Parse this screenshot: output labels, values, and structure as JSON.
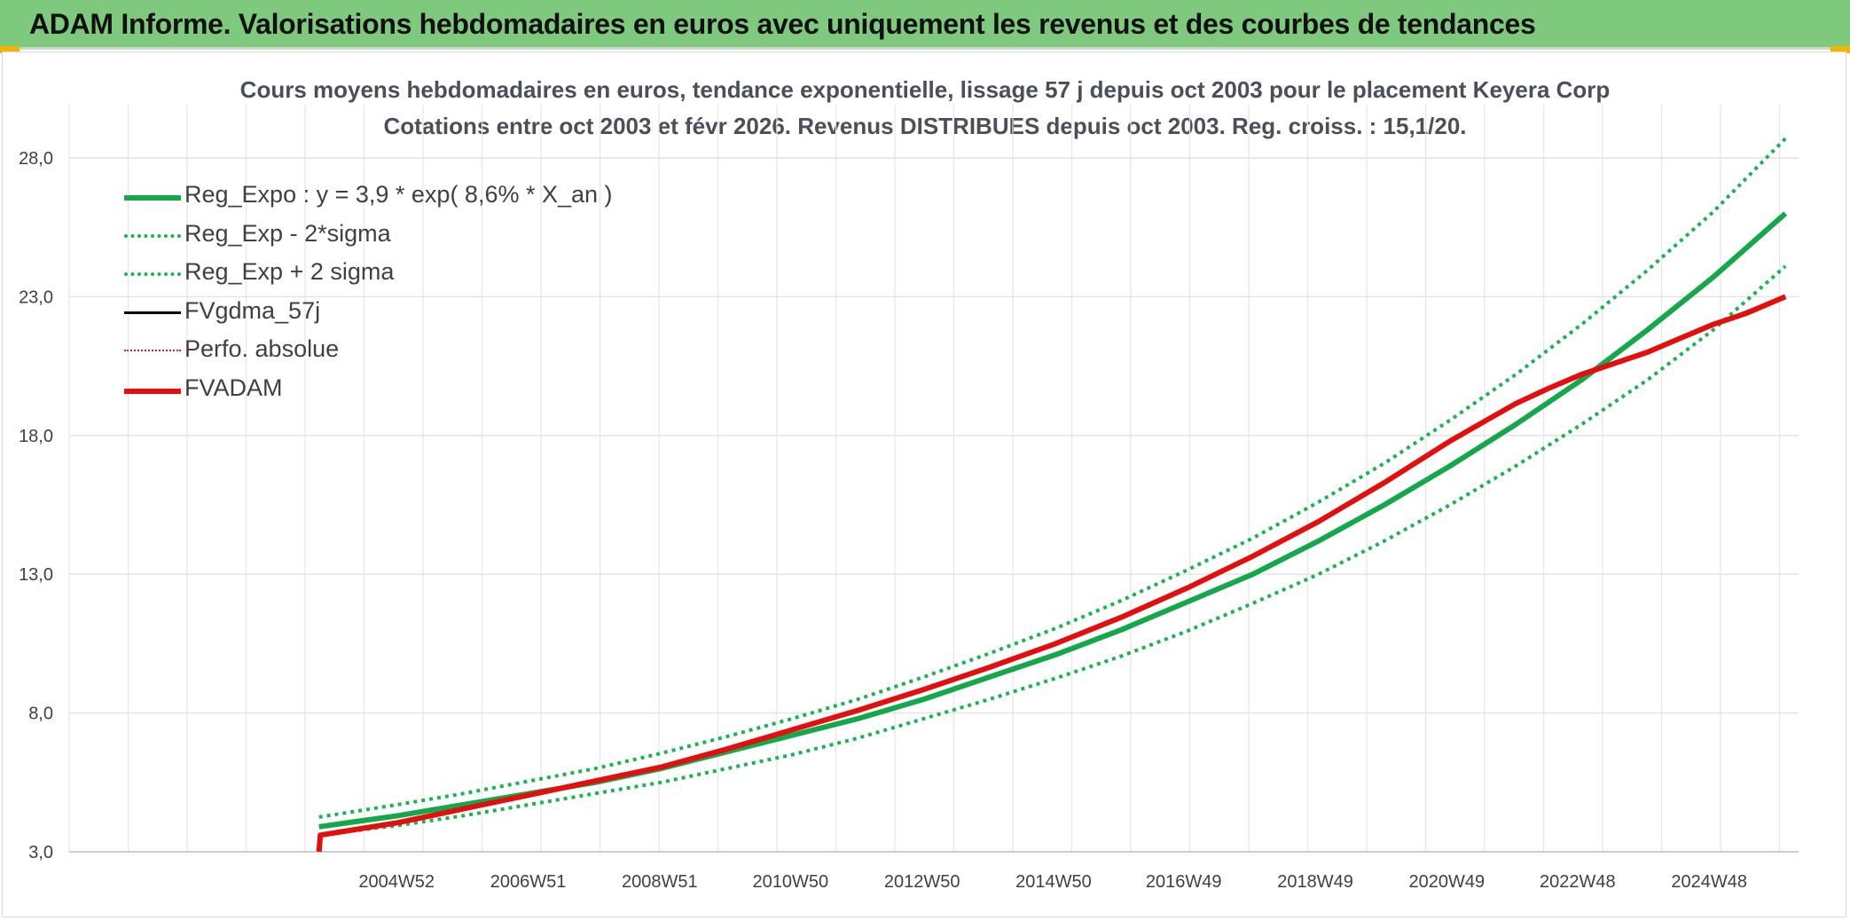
{
  "banner": {
    "title": "ADAM Informe. Valorisations hebdomadaires en euros avec uniquement les revenus et des courbes de tendances"
  },
  "chart_data": {
    "type": "line",
    "title": "Cours moyens hebdomadaires en euros, tendance exponentielle, lissage 57 j depuis oct 2003 pour le placement Keyera Corp",
    "subtitle": "Cotations entre oct 2003 et févr 2026. Revenus DISTRIBUES depuis oct 2003. Reg. croiss. : 15,1/20.",
    "xlabel": "",
    "ylabel": "",
    "ylim": [
      3.0,
      28.0
    ],
    "y_ticks": [
      "3,0",
      "8,0",
      "13,0",
      "18,0",
      "23,0",
      "28,0"
    ],
    "y_tick_values": [
      3.0,
      8.0,
      13.0,
      18.0,
      23.0,
      28.0
    ],
    "x_tick_labels": [
      "2004W52",
      "2006W51",
      "2008W51",
      "2010W50",
      "2012W50",
      "2014W50",
      "2016W49",
      "2018W49",
      "2020W49",
      "2022W48",
      "2024W48"
    ],
    "x_tick_years": [
      2004.98,
      2006.98,
      2008.98,
      2010.97,
      2012.97,
      2014.97,
      2016.95,
      2018.95,
      2020.95,
      2022.94,
      2024.94
    ],
    "xlim": [
      2000.0,
      2026.3
    ],
    "grid": true,
    "legend_position": "top-left",
    "colors": {
      "trend": "#14a84a",
      "sigma": "#1db354",
      "fvgdma": "#000000",
      "perfo": "#d41f1f",
      "fvadam": "#e30e0e"
    },
    "series": [
      {
        "name": "Reg_Expo : y = 3,9 * exp( 8,6% *  X_an )",
        "style": "solid-thick",
        "color": "#14a84a",
        "x": [
          2003.8,
          2005.0,
          2006.0,
          2007.0,
          2008.0,
          2009.0,
          2010.0,
          2011.0,
          2012.0,
          2013.0,
          2014.0,
          2015.0,
          2016.0,
          2017.0,
          2018.0,
          2019.0,
          2020.0,
          2021.0,
          2022.0,
          2023.0,
          2024.0,
          2025.0,
          2026.1
        ],
        "y": [
          3.9,
          4.3,
          4.7,
          5.1,
          5.5,
          6.0,
          6.6,
          7.2,
          7.8,
          8.5,
          9.3,
          10.1,
          11.0,
          12.0,
          13.0,
          14.2,
          15.5,
          16.9,
          18.4,
          20.0,
          21.8,
          23.7,
          26.0
        ]
      },
      {
        "name": "Reg_Exp - 2*sigma",
        "style": "dotted",
        "color": "#1db354",
        "x": [
          2003.8,
          2005.0,
          2006.0,
          2007.0,
          2008.0,
          2009.0,
          2010.0,
          2011.0,
          2012.0,
          2013.0,
          2014.0,
          2015.0,
          2016.0,
          2017.0,
          2018.0,
          2019.0,
          2020.0,
          2021.0,
          2022.0,
          2023.0,
          2024.0,
          2025.0,
          2026.1
        ],
        "y": [
          3.6,
          3.95,
          4.3,
          4.7,
          5.1,
          5.5,
          6.0,
          6.5,
          7.1,
          7.8,
          8.5,
          9.25,
          10.05,
          10.95,
          11.95,
          13.0,
          14.2,
          15.5,
          16.9,
          18.4,
          20.0,
          21.8,
          24.1
        ]
      },
      {
        "name": "Reg_Exp + 2 sigma",
        "style": "dotted",
        "color": "#1db354",
        "x": [
          2003.8,
          2005.0,
          2006.0,
          2007.0,
          2008.0,
          2009.0,
          2010.0,
          2011.0,
          2012.0,
          2013.0,
          2014.0,
          2015.0,
          2016.0,
          2017.0,
          2018.0,
          2019.0,
          2020.0,
          2021.0,
          2022.0,
          2023.0,
          2024.0,
          2025.0,
          2026.1
        ],
        "y": [
          4.25,
          4.7,
          5.1,
          5.55,
          6.0,
          6.55,
          7.15,
          7.8,
          8.5,
          9.3,
          10.15,
          11.05,
          12.05,
          13.15,
          14.3,
          15.6,
          17.0,
          18.55,
          20.2,
          22.0,
          23.95,
          26.05,
          28.7
        ]
      },
      {
        "name": "FVgdma_57j",
        "style": "solid",
        "color": "#000000",
        "x": [
          2003.8,
          2005.0,
          2006.0,
          2007.0,
          2008.0,
          2009.0,
          2010.0,
          2011.0,
          2012.0,
          2013.0,
          2014.0,
          2015.0,
          2016.0,
          2017.0,
          2018.0,
          2019.0,
          2020.0,
          2021.0,
          2022.0,
          2023.0,
          2024.0,
          2025.0,
          2026.1
        ],
        "y": [
          3.6,
          4.05,
          4.55,
          5.05,
          5.55,
          6.05,
          6.7,
          7.4,
          8.1,
          8.85,
          9.65,
          10.5,
          11.45,
          12.5,
          13.65,
          14.9,
          16.3,
          17.8,
          19.15,
          20.2,
          21.0,
          22.0,
          23.0
        ]
      },
      {
        "name": "Perfo. absolue",
        "style": "dotted-thin",
        "color": "#d41f1f",
        "x": [
          2003.8,
          2005.0,
          2006.0,
          2007.0,
          2008.0,
          2009.0,
          2010.0,
          2011.0,
          2012.0,
          2013.0,
          2014.0,
          2015.0,
          2016.0,
          2017.0,
          2018.0,
          2019.0,
          2020.0,
          2021.0,
          2022.0,
          2023.0,
          2024.0,
          2025.0,
          2026.1
        ],
        "y": [
          3.6,
          4.05,
          4.55,
          5.05,
          5.55,
          6.05,
          6.7,
          7.4,
          8.1,
          8.85,
          9.65,
          10.5,
          11.45,
          12.5,
          13.65,
          14.9,
          16.3,
          17.8,
          19.15,
          20.2,
          21.0,
          22.0,
          23.0
        ]
      },
      {
        "name": "FVADAM",
        "style": "solid-thick",
        "color": "#e30e0e",
        "x": [
          2003.8,
          2003.82,
          2005.0,
          2006.0,
          2007.0,
          2008.0,
          2009.0,
          2010.0,
          2011.0,
          2012.0,
          2013.0,
          2014.0,
          2015.0,
          2016.0,
          2017.0,
          2018.0,
          2019.0,
          2020.0,
          2021.0,
          2022.0,
          2022.5,
          2023.0,
          2023.5,
          2024.0,
          2024.5,
          2025.0,
          2025.5,
          2026.1
        ],
        "y": [
          3.0,
          3.6,
          4.05,
          4.55,
          5.05,
          5.55,
          6.05,
          6.7,
          7.4,
          8.1,
          8.85,
          9.65,
          10.5,
          11.45,
          12.5,
          13.65,
          14.9,
          16.3,
          17.8,
          19.15,
          19.7,
          20.2,
          20.6,
          21.0,
          21.5,
          22.0,
          22.4,
          23.0
        ]
      }
    ]
  }
}
